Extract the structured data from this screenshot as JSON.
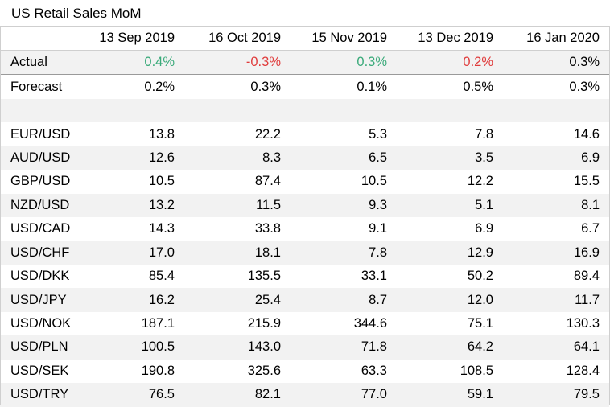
{
  "title": "US Retail Sales MoM",
  "columns": [
    "13 Sep 2019",
    "16 Oct 2019",
    "15 Nov 2019",
    "13 Dec 2019",
    "16 Jan 2020"
  ],
  "actual": {
    "label": "Actual",
    "values": [
      "0.4%",
      "-0.3%",
      "0.3%",
      "0.2%",
      "0.3%"
    ],
    "colors": [
      "pos",
      "neg",
      "pos",
      "neg",
      "plain"
    ]
  },
  "forecast": {
    "label": "Forecast",
    "values": [
      "0.2%",
      "0.3%",
      "0.1%",
      "0.5%",
      "0.3%"
    ]
  },
  "pairs": [
    {
      "label": "EUR/USD",
      "values": [
        "13.8",
        "22.2",
        "5.3",
        "7.8",
        "14.6"
      ]
    },
    {
      "label": "AUD/USD",
      "values": [
        "12.6",
        "8.3",
        "6.5",
        "3.5",
        "6.9"
      ]
    },
    {
      "label": "GBP/USD",
      "values": [
        "10.5",
        "87.4",
        "10.5",
        "12.2",
        "15.5"
      ]
    },
    {
      "label": "NZD/USD",
      "values": [
        "13.2",
        "11.5",
        "9.3",
        "5.1",
        "8.1"
      ]
    },
    {
      "label": "USD/CAD",
      "values": [
        "14.3",
        "33.8",
        "9.1",
        "6.9",
        "6.7"
      ]
    },
    {
      "label": "USD/CHF",
      "values": [
        "17.0",
        "18.1",
        "7.8",
        "12.9",
        "16.9"
      ]
    },
    {
      "label": "USD/DKK",
      "values": [
        "85.4",
        "135.5",
        "33.1",
        "50.2",
        "89.4"
      ]
    },
    {
      "label": "USD/JPY",
      "values": [
        "16.2",
        "25.4",
        "8.7",
        "12.0",
        "11.7"
      ]
    },
    {
      "label": "USD/NOK",
      "values": [
        "187.1",
        "215.9",
        "344.6",
        "75.1",
        "130.3"
      ]
    },
    {
      "label": "USD/PLN",
      "values": [
        "100.5",
        "143.0",
        "71.8",
        "64.2",
        "64.1"
      ]
    },
    {
      "label": "USD/SEK",
      "values": [
        "190.8",
        "325.6",
        "63.3",
        "108.5",
        "128.4"
      ]
    },
    {
      "label": "USD/TRY",
      "values": [
        "76.5",
        "82.1",
        "77.0",
        "59.1",
        "79.5"
      ]
    }
  ],
  "colors": {
    "positive": "#3aaa7a",
    "negative": "#e03c3c",
    "row_shade": "#f2f2f2",
    "border": "#cfcfcf"
  }
}
